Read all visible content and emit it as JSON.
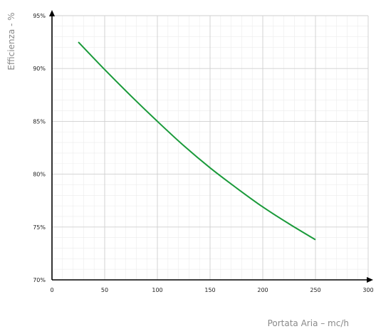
{
  "chart_data": {
    "type": "line",
    "title": "",
    "xlabel": "Portata Aria – mc/h",
    "ylabel": "Efficienza - %",
    "xlim": [
      0,
      300
    ],
    "ylim": [
      70,
      95
    ],
    "x_ticks": [
      0,
      50,
      100,
      150,
      200,
      250,
      300
    ],
    "y_ticks": [
      70,
      75,
      80,
      85,
      90,
      95
    ],
    "y_tick_labels": [
      "70%",
      "75%",
      "80%",
      "85%",
      "90%",
      "95%"
    ],
    "grid": true,
    "legend": "none",
    "series": [
      {
        "color": "#1a9a3a",
        "x": [
          25,
          50,
          75,
          100,
          125,
          150,
          175,
          200,
          225,
          250
        ],
        "y": [
          92.5,
          89.9,
          87.4,
          85.0,
          82.7,
          80.6,
          78.7,
          76.9,
          75.3,
          73.8
        ]
      }
    ]
  },
  "colors": {
    "major_grid": "#cfcfcf",
    "minor_grid": "#ececec",
    "axis": "#000000"
  }
}
